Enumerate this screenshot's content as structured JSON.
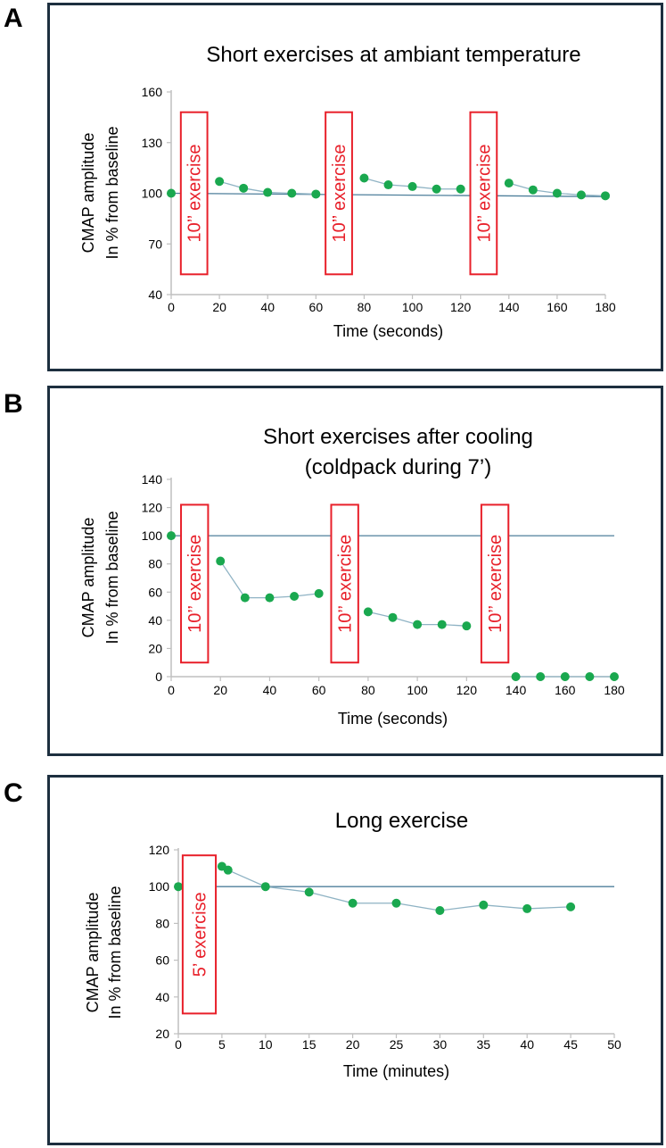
{
  "colors": {
    "marker": "#1aa84f",
    "line": "#8fb3c4",
    "baseline": "#4e7f9b",
    "box": "#e8202a",
    "axis": "#bfbfbf",
    "frame": "#1d2f3f"
  },
  "chart_data": [
    {
      "panel": "A",
      "type": "scatter",
      "title": "Short exercises at ambiant temperature",
      "ylabel_line1": "CMAP amplitude",
      "ylabel_line2": "In % from baseline",
      "xlabel": "Time (seconds)",
      "xlim": [
        0,
        180
      ],
      "ylim": [
        40,
        160
      ],
      "xticks": [
        0,
        20,
        40,
        60,
        80,
        100,
        120,
        140,
        160,
        180
      ],
      "yticks": [
        40,
        70,
        100,
        130,
        160
      ],
      "baseline": 100,
      "baseline_end": 98,
      "segments": [
        {
          "x": [
            0
          ],
          "y": [
            100
          ]
        },
        {
          "x": [
            20,
            30,
            40,
            50,
            60
          ],
          "y": [
            107,
            103,
            100.5,
            100,
            99.5
          ]
        },
        {
          "x": [
            80,
            90,
            100,
            110,
            120
          ],
          "y": [
            109,
            105,
            104,
            102.5,
            102.5
          ]
        },
        {
          "x": [
            140,
            150,
            160,
            170,
            180
          ],
          "y": [
            106,
            102,
            100,
            99,
            98.5
          ]
        }
      ],
      "exercise_label": "10’’ exercise",
      "exercise_blocks": [
        {
          "x_from": 4,
          "x_to": 15
        },
        {
          "x_from": 64,
          "x_to": 75
        },
        {
          "x_from": 124,
          "x_to": 135
        }
      ],
      "block_ylim": [
        52,
        148
      ]
    },
    {
      "panel": "B",
      "type": "scatter",
      "title": "Short exercises after cooling",
      "subtitle": "(coldpack during 7’)",
      "ylabel_line1": "CMAP amplitude",
      "ylabel_line2": "In % from baseline",
      "xlabel": "Time (seconds)",
      "xlim": [
        0,
        180
      ],
      "ylim": [
        0,
        140
      ],
      "xticks": [
        0,
        20,
        40,
        60,
        80,
        100,
        120,
        140,
        160,
        180
      ],
      "yticks": [
        0,
        20,
        40,
        60,
        80,
        100,
        120,
        140
      ],
      "baseline": 100,
      "baseline_end": 100,
      "segments": [
        {
          "x": [
            0
          ],
          "y": [
            100
          ]
        },
        {
          "x": [
            20,
            30,
            40,
            50,
            60
          ],
          "y": [
            82,
            56,
            56,
            57,
            59
          ]
        },
        {
          "x": [
            80,
            90,
            100,
            110,
            120
          ],
          "y": [
            46,
            42,
            37,
            37,
            36
          ]
        },
        {
          "x": [
            140,
            150,
            160,
            170,
            180
          ],
          "y": [
            0,
            0,
            0,
            0,
            0
          ]
        }
      ],
      "exercise_label": "10’’ exercise",
      "exercise_blocks": [
        {
          "x_from": 4,
          "x_to": 15
        },
        {
          "x_from": 65,
          "x_to": 76
        },
        {
          "x_from": 126,
          "x_to": 137
        }
      ],
      "block_ylim": [
        10,
        122
      ]
    },
    {
      "panel": "C",
      "type": "scatter",
      "title": "Long exercise",
      "ylabel_line1": "CMAP amplitude",
      "ylabel_line2": "In % from baseline",
      "xlabel": "Time (minutes)",
      "xlim": [
        0,
        50
      ],
      "ylim": [
        20,
        120
      ],
      "xticks": [
        0,
        5,
        10,
        15,
        20,
        25,
        30,
        35,
        40,
        45,
        50
      ],
      "yticks": [
        20,
        40,
        60,
        80,
        100,
        120
      ],
      "baseline": 100,
      "baseline_end": 100,
      "segments": [
        {
          "x": [
            0
          ],
          "y": [
            100
          ]
        },
        {
          "x": [
            5,
            5.7,
            10,
            15,
            20,
            25,
            30,
            35,
            40,
            45
          ],
          "y": [
            111,
            109,
            100,
            97,
            91,
            91,
            87,
            90,
            88,
            89
          ]
        }
      ],
      "exercise_label": "5’ exercise",
      "exercise_blocks": [
        {
          "x_from": 0.5,
          "x_to": 4.3
        }
      ],
      "block_ylim": [
        31,
        117
      ]
    }
  ]
}
